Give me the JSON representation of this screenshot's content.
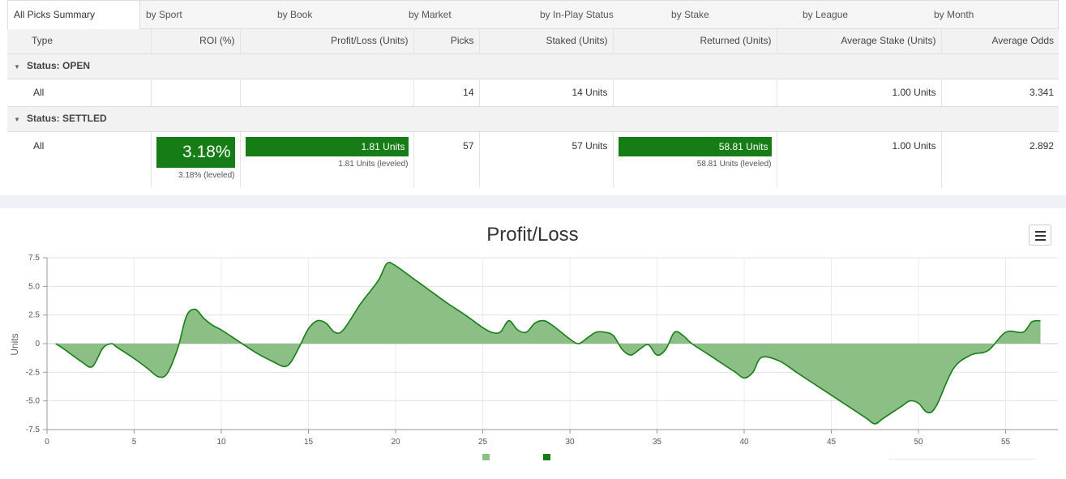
{
  "tabs": [
    {
      "label": "All Picks Summary",
      "active": true
    },
    {
      "label": "by Sport"
    },
    {
      "label": "by Book"
    },
    {
      "label": "by Market"
    },
    {
      "label": "by In-Play Status"
    },
    {
      "label": "by Stake"
    },
    {
      "label": "by League"
    },
    {
      "label": "by Month"
    }
  ],
  "table": {
    "columns": [
      "Type",
      "ROI (%)",
      "Profit/Loss (Units)",
      "Picks",
      "Staked (Units)",
      "Returned (Units)",
      "Average Stake (Units)",
      "Average Odds"
    ],
    "groups": [
      {
        "label": "Status: OPEN",
        "row": {
          "type": "All",
          "roi": "",
          "profit": "",
          "picks": "14",
          "staked": "14 Units",
          "returned": "",
          "avg_stake": "1.00 Units",
          "avg_odds": "3.341"
        }
      },
      {
        "label": "Status: SETTLED",
        "row": {
          "type": "All",
          "roi": "3.18%",
          "roi_leveled": "3.18% (leveled)",
          "profit": "1.81 Units",
          "profit_leveled": "1.81 Units (leveled)",
          "picks": "57",
          "staked": "57 Units",
          "returned": "58.81 Units",
          "returned_leveled": "58.81 Units (leveled)",
          "avg_stake": "1.00 Units",
          "avg_odds": "2.892"
        }
      }
    ]
  },
  "chart_data": {
    "type": "area",
    "title": "Profit/Loss",
    "xlabel": "",
    "ylabel": "Units",
    "xlim": [
      0,
      58
    ],
    "ylim": [
      -7.5,
      7.5
    ],
    "x_ticks": [
      "0",
      "5",
      "10",
      "15",
      "20",
      "25",
      "30",
      "35",
      "40",
      "45",
      "50",
      "55"
    ],
    "y_ticks": [
      "7.5",
      "5.0",
      "2.5",
      "0",
      "-2.5",
      "-5.0",
      "-7.5"
    ],
    "grid": true,
    "legend_position": "bottom",
    "series": [
      {
        "x": [
          0.5,
          1,
          2,
          2.6,
          3.2,
          3.7,
          4,
          5,
          5.8,
          6.4,
          6.9,
          7.5,
          8,
          8.5,
          9,
          9.5,
          10,
          11,
          12,
          13,
          13.6,
          14,
          14.5,
          15,
          15.5,
          16,
          16.5,
          17,
          18,
          19,
          19.5,
          20,
          21,
          22,
          23,
          24,
          25,
          25.5,
          26,
          26.5,
          27,
          27.5,
          28,
          28.5,
          29,
          30,
          30.5,
          31,
          31.5,
          32,
          32.5,
          33,
          33.5,
          34,
          34.5,
          35,
          35.5,
          36,
          36.5,
          37,
          38,
          39,
          39.5,
          40,
          40.5,
          41,
          42,
          43,
          44,
          45,
          46,
          47,
          47.5,
          48,
          49,
          49.5,
          50,
          50.5,
          51,
          52,
          53,
          54,
          55,
          56,
          56.5,
          57
        ],
        "values": [
          0,
          -0.5,
          -1.6,
          -2,
          -0.4,
          0,
          -0.3,
          -1.3,
          -2.2,
          -2.9,
          -2.6,
          -0.4,
          2.4,
          3,
          2.2,
          1.6,
          1.2,
          0.2,
          -0.8,
          -1.6,
          -2,
          -1.6,
          -0.2,
          1.3,
          2,
          1.8,
          1,
          1.2,
          3.5,
          5.5,
          7,
          6.8,
          5.7,
          4.6,
          3.5,
          2.5,
          1.4,
          1,
          1,
          2,
          1.2,
          1,
          1.8,
          2,
          1.6,
          0.4,
          0,
          0.5,
          1,
          1,
          0.7,
          -0.5,
          -1,
          -0.5,
          -0.1,
          -1,
          -0.5,
          1,
          0.7,
          0,
          -1,
          -2,
          -2.5,
          -3,
          -2.5,
          -1.2,
          -1.5,
          -2.5,
          -3.5,
          -4.5,
          -5.5,
          -6.5,
          -7,
          -6.5,
          -5.5,
          -5,
          -5.2,
          -6,
          -5.5,
          -2.2,
          -1,
          -0.6,
          1,
          1,
          1.9,
          2
        ]
      }
    ]
  }
}
